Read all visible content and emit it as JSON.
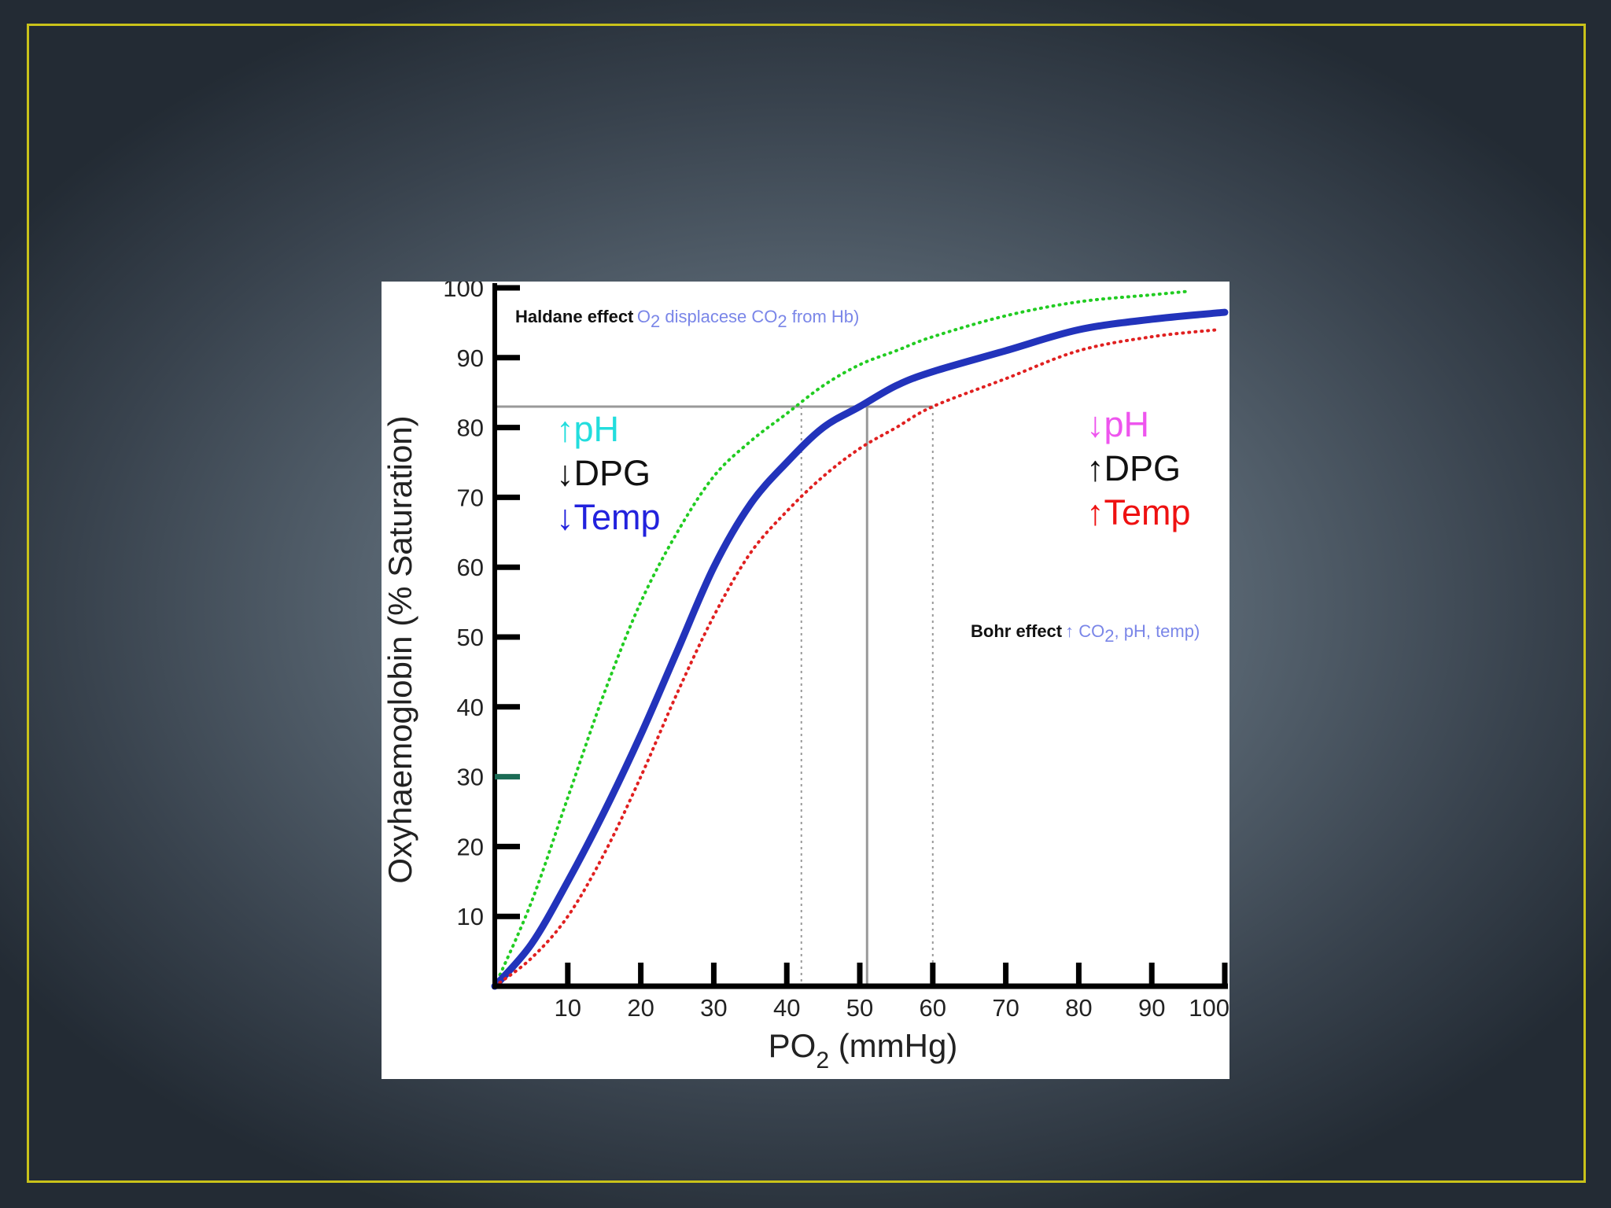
{
  "chart_data": {
    "type": "line",
    "xlabel_main": "PO",
    "xlabel_sub": "2",
    "xlabel_unit": " (mmHg)",
    "ylabel": "Oxyhaemoglobin (% Saturation)",
    "xlim": [
      0,
      100
    ],
    "ylim": [
      0,
      100
    ],
    "x_ticks": [
      "10",
      "20",
      "30",
      "40",
      "50",
      "60",
      "70",
      "80",
      "90",
      "100"
    ],
    "y_ticks": [
      "10",
      "20",
      "30",
      "40",
      "50",
      "60",
      "70",
      "80",
      "90",
      "100"
    ],
    "series": [
      {
        "style": "dotted",
        "color": "#22cc22",
        "x": [
          0,
          5,
          10,
          15,
          20,
          25,
          30,
          35,
          40,
          45,
          50,
          55,
          60,
          70,
          80,
          90,
          95
        ],
        "y": [
          0,
          12,
          27,
          42,
          55,
          65,
          73,
          78,
          82,
          86,
          89,
          91,
          93,
          96,
          98,
          99,
          99.5
        ]
      },
      {
        "style": "solid",
        "color": "#2233bb",
        "x": [
          0,
          5,
          10,
          15,
          20,
          25,
          30,
          35,
          40,
          45,
          50,
          55,
          60,
          70,
          80,
          90,
          100
        ],
        "y": [
          0,
          6,
          15,
          25,
          36,
          48,
          60,
          69,
          75,
          80,
          83,
          86,
          88,
          91,
          94,
          95.5,
          96.5
        ]
      },
      {
        "style": "dotted",
        "color": "#e02020",
        "x": [
          0,
          5,
          10,
          15,
          20,
          25,
          30,
          35,
          40,
          45,
          50,
          55,
          60,
          70,
          80,
          90,
          99
        ],
        "y": [
          0,
          4,
          10,
          19,
          30,
          42,
          53,
          62,
          68,
          73,
          77,
          80,
          83,
          87,
          91,
          93,
          94
        ]
      }
    ],
    "reference_lines": {
      "horizontal_y": 83,
      "vertical_x": [
        42,
        51,
        60
      ]
    },
    "annotations": {
      "haldane_bold": "Haldane effect",
      "haldane_pre": "O",
      "haldane_sub": "2",
      "haldane_mid": " displacese CO",
      "haldane_sub2": "2",
      "haldane_post": " from Hb)",
      "bohr_bold": "Bohr effect",
      "bohr_arrow": "↑",
      "bohr_pre": " CO",
      "bohr_sub": "2",
      "bohr_post": ", pH, temp)",
      "left_legend": [
        {
          "arrow": "↑",
          "label": "pH",
          "color": "#22dddd"
        },
        {
          "arrow": "↓",
          "label": "DPG",
          "color": "#111111"
        },
        {
          "arrow": "↓",
          "label": "Temp",
          "color": "#2222dd"
        }
      ],
      "right_legend": [
        {
          "arrow": "↓",
          "label": "pH",
          "color": "#ee55ee"
        },
        {
          "arrow": "↑",
          "label": "DPG",
          "color": "#111111"
        },
        {
          "arrow": "↑",
          "label": "Temp",
          "color": "#ee1111"
        }
      ],
      "note_color": "#7a86e8"
    }
  }
}
